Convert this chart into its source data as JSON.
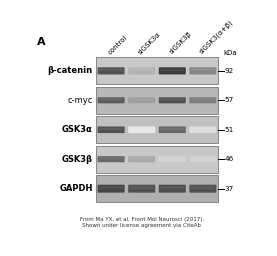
{
  "title_letter": "A",
  "col_labels": [
    "control",
    "siGSK3α",
    "siGSK3β",
    "siGSK3(α+β)"
  ],
  "row_labels": [
    "β-catenin",
    "c-myc",
    "GSK3α",
    "GSK3β",
    "GAPDH"
  ],
  "kda_labels": [
    "92",
    "57",
    "51",
    "46",
    "37"
  ],
  "row_label_bold": [
    true,
    false,
    true,
    true,
    true
  ],
  "citation": "From Ma YX, et al. Front Mol Neurosci (2017).\nShown under license agreement via CiteAb",
  "panel_bg": [
    "#c8c8c8",
    "#b8b8b8",
    "#c0c0c0",
    "#c8c8c8",
    "#b0b0b0"
  ],
  "rows": [
    {
      "label": "β-catenin",
      "kda": "92",
      "bold": true,
      "band_intensities": [
        0.8,
        0.35,
        0.9,
        0.55
      ],
      "band_thickness": 0.22
    },
    {
      "label": "c-myc",
      "kda": "57",
      "bold": false,
      "band_intensities": [
        0.75,
        0.45,
        0.8,
        0.6
      ],
      "band_thickness": 0.18
    },
    {
      "label": "GSK3α",
      "kda": "51",
      "bold": true,
      "band_intensities": [
        0.8,
        0.1,
        0.7,
        0.15
      ],
      "band_thickness": 0.2
    },
    {
      "label": "GSK3β",
      "kda": "46",
      "bold": true,
      "band_intensities": [
        0.7,
        0.4,
        0.2,
        0.2
      ],
      "band_thickness": 0.18
    },
    {
      "label": "GAPDH",
      "kda": "37",
      "bold": true,
      "band_intensities": [
        0.85,
        0.8,
        0.82,
        0.8
      ],
      "band_thickness": 0.25
    }
  ]
}
